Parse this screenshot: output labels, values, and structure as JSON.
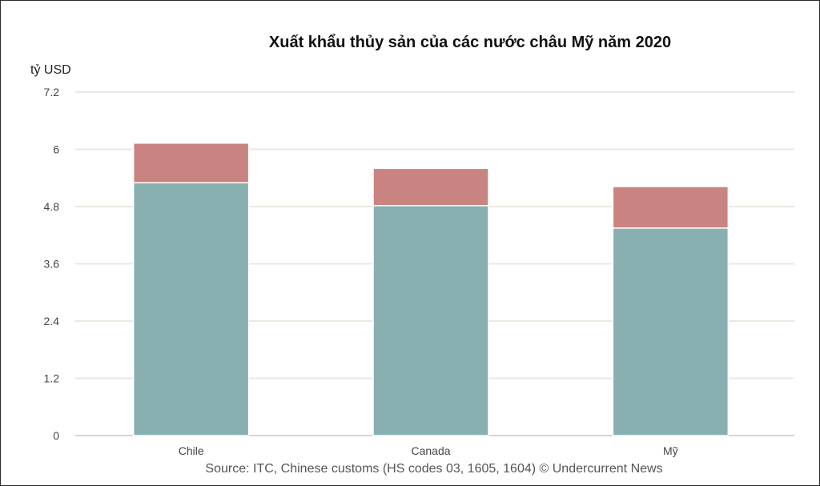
{
  "chart_data": {
    "type": "bar",
    "stacked": true,
    "title": "Xuất khẩu thủy sản của các nước châu Mỹ năm 2020",
    "ylabel": "tỷ USD",
    "xlabel": "",
    "source": "Source: ITC, Chinese customs (HS codes 03, 1605, 1604) © Undercurrent News",
    "categories": [
      "Chile",
      "Canada",
      "Mỹ"
    ],
    "ylim": [
      0,
      7.2
    ],
    "yticks": [
      0,
      1.2,
      2.4,
      3.6,
      4.8,
      6,
      7.2
    ],
    "ytick_labels": [
      "0",
      "1.2",
      "2.4",
      "3.6",
      "4.8",
      "6",
      "7.2"
    ],
    "grid": true,
    "legend": "none",
    "series": [
      {
        "color": "#88b0b1",
        "values": [
          5.3,
          4.82,
          4.35
        ]
      },
      {
        "color": "#c98380",
        "values": [
          0.83,
          0.78,
          0.87
        ]
      }
    ]
  }
}
